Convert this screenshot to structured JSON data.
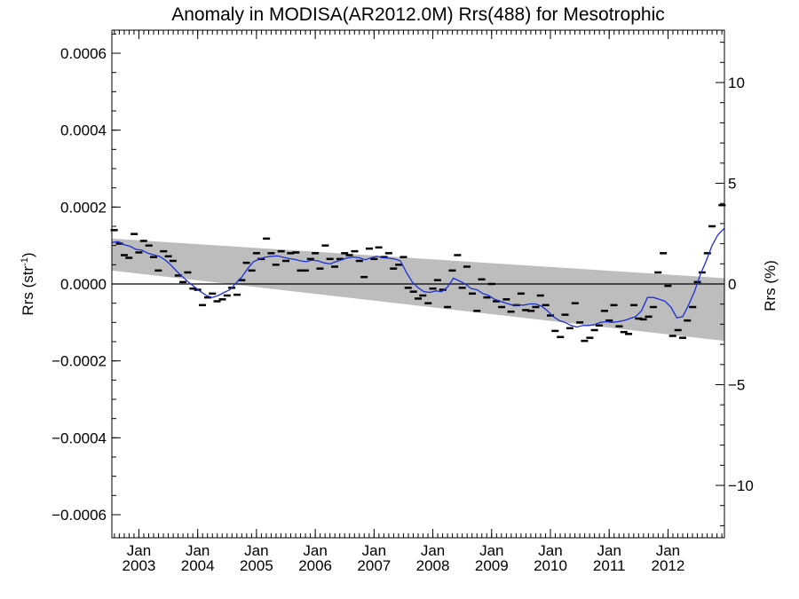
{
  "chart_data": {
    "type": "line",
    "title": "Anomaly in MODISA(AR2012.0M) Rrs(488) for Mesotrophic",
    "ylabel": "Rrs (str⁻¹)",
    "ylabel_base": "Rrs (str",
    "ylabel_sup": "-1",
    "ylabel_close": ")",
    "y2label": "Rrs (%)",
    "xlim": [
      2002.54,
      2012.96
    ],
    "ylim": [
      -0.00066,
      0.00066
    ],
    "y2lim": [
      -12.6,
      12.6
    ],
    "yticks": [
      -0.0006,
      -0.0004,
      -0.0002,
      0.0,
      0.0002,
      0.0004,
      0.0006
    ],
    "yticklabels": [
      "−0.0006",
      "−0.0004",
      "−0.0002",
      "0.0000",
      "0.0002",
      "0.0004",
      "0.0006"
    ],
    "y2ticks": [
      -10,
      -5,
      0,
      5,
      10
    ],
    "y2ticklabels": [
      "−10",
      "−5",
      "0",
      "5",
      "10"
    ],
    "xticks": [
      2003,
      2004,
      2005,
      2006,
      2007,
      2008,
      2009,
      2010,
      2011,
      2012
    ],
    "xticklabels_month": [
      "Jan",
      "Jan",
      "Jan",
      "Jan",
      "Jan",
      "Jan",
      "Jan",
      "Jan",
      "Jan",
      "Jan"
    ],
    "xticklabels_year": [
      "2003",
      "2004",
      "2005",
      "2006",
      "2007",
      "2008",
      "2009",
      "2010",
      "2011",
      "2012"
    ],
    "zero_line": 0,
    "band": {
      "upper": [
        [
          2002.54,
          0.000118
        ],
        [
          2012.96,
          1.5e-05
        ]
      ],
      "lower": [
        [
          2002.54,
          3.5e-05
        ],
        [
          2012.96,
          -0.000148
        ]
      ],
      "color": "#bdbdbd"
    },
    "series": [
      {
        "kind": "monthly-anomaly-markers",
        "color": "#000000",
        "points": [
          [
            2002.58,
            0.00014
          ],
          [
            2002.67,
            0.000105
          ],
          [
            2002.75,
            7.5e-05
          ],
          [
            2002.83,
            6.8e-05
          ],
          [
            2002.92,
            0.00013
          ],
          [
            2003.0,
            8.2e-05
          ],
          [
            2003.08,
            0.000112
          ],
          [
            2003.17,
            0.0001
          ],
          [
            2003.25,
            7e-05
          ],
          [
            2003.33,
            3.5e-05
          ],
          [
            2003.42,
            8.5e-05
          ],
          [
            2003.5,
            7.2e-05
          ],
          [
            2003.58,
            6e-05
          ],
          [
            2003.67,
            2.2e-05
          ],
          [
            2003.75,
            5e-06
          ],
          [
            2003.83,
            3e-05
          ],
          [
            2003.92,
            -1.2e-05
          ],
          [
            2004.0,
            -1.5e-05
          ],
          [
            2004.08,
            -5.5e-05
          ],
          [
            2004.17,
            -3.5e-05
          ],
          [
            2004.25,
            -2.5e-05
          ],
          [
            2004.33,
            -4.5e-05
          ],
          [
            2004.42,
            -4e-05
          ],
          [
            2004.5,
            -3e-05
          ],
          [
            2004.58,
            -1e-05
          ],
          [
            2004.67,
            -2.8e-05
          ],
          [
            2004.75,
            1e-05
          ],
          [
            2004.83,
            5.5e-05
          ],
          [
            2004.92,
            3.5e-05
          ],
          [
            2005.0,
            8e-05
          ],
          [
            2005.08,
            6.5e-05
          ],
          [
            2005.17,
            0.000118
          ],
          [
            2005.25,
            8e-05
          ],
          [
            2005.33,
            5e-05
          ],
          [
            2005.42,
            8.5e-05
          ],
          [
            2005.5,
            6e-05
          ],
          [
            2005.58,
            8e-05
          ],
          [
            2005.67,
            8.2e-05
          ],
          [
            2005.75,
            3.5e-05
          ],
          [
            2005.83,
            3.5e-05
          ],
          [
            2005.92,
            6.5e-05
          ],
          [
            2006.0,
            8e-05
          ],
          [
            2006.08,
            4e-05
          ],
          [
            2006.17,
            0.0001
          ],
          [
            2006.25,
            6.5e-05
          ],
          [
            2006.33,
            4.5e-05
          ],
          [
            2006.42,
            6.5e-05
          ],
          [
            2006.5,
            8e-05
          ],
          [
            2006.58,
            7.5e-05
          ],
          [
            2006.67,
            8.5e-05
          ],
          [
            2006.75,
            6e-05
          ],
          [
            2006.83,
            1.8e-05
          ],
          [
            2006.92,
            9.2e-05
          ],
          [
            2007.0,
            6.5e-05
          ],
          [
            2007.08,
            9.5e-05
          ],
          [
            2007.17,
            7e-05
          ],
          [
            2007.25,
            8e-05
          ],
          [
            2007.33,
            4e-05
          ],
          [
            2007.42,
            5e-05
          ],
          [
            2007.5,
            7e-05
          ],
          [
            2007.58,
            -1e-05
          ],
          [
            2007.67,
            -2e-05
          ],
          [
            2007.75,
            -3.8e-05
          ],
          [
            2007.83,
            -3e-05
          ],
          [
            2007.92,
            -5e-05
          ],
          [
            2008.0,
            -1.2e-05
          ],
          [
            2008.08,
            1e-05
          ],
          [
            2008.17,
            -1.5e-05
          ],
          [
            2008.25,
            -6e-05
          ],
          [
            2008.33,
            3.5e-05
          ],
          [
            2008.42,
            7.5e-05
          ],
          [
            2008.5,
            -1e-05
          ],
          [
            2008.58,
            4.5e-05
          ],
          [
            2008.67,
            -2.5e-05
          ],
          [
            2008.75,
            -7e-05
          ],
          [
            2008.83,
            1.2e-05
          ],
          [
            2008.92,
            -3.5e-05
          ],
          [
            2009.0,
            0.0
          ],
          [
            2009.08,
            -4.5e-05
          ],
          [
            2009.17,
            -6e-05
          ],
          [
            2009.25,
            -4e-05
          ],
          [
            2009.33,
            -7.2e-05
          ],
          [
            2009.42,
            -5.5e-05
          ],
          [
            2009.5,
            -2.5e-05
          ],
          [
            2009.58,
            -6.8e-05
          ],
          [
            2009.67,
            -7e-05
          ],
          [
            2009.75,
            -6e-05
          ],
          [
            2009.83,
            -3e-05
          ],
          [
            2009.92,
            -5.5e-05
          ],
          [
            2010.0,
            -8.2e-05
          ],
          [
            2010.08,
            -0.000122
          ],
          [
            2010.17,
            -0.000138
          ],
          [
            2010.25,
            -8e-05
          ],
          [
            2010.33,
            -0.000115
          ],
          [
            2010.42,
            -5e-05
          ],
          [
            2010.5,
            -0.0001
          ],
          [
            2010.58,
            -0.000148
          ],
          [
            2010.67,
            -0.00014
          ],
          [
            2010.75,
            -0.00012
          ],
          [
            2010.83,
            -0.000108
          ],
          [
            2010.92,
            -7e-05
          ],
          [
            2011.0,
            -9.5e-05
          ],
          [
            2011.08,
            -5.5e-05
          ],
          [
            2011.17,
            -0.00011
          ],
          [
            2011.25,
            -0.000125
          ],
          [
            2011.33,
            -0.00013
          ],
          [
            2011.42,
            -5.5e-05
          ],
          [
            2011.5,
            -9e-05
          ],
          [
            2011.58,
            -9.2e-05
          ],
          [
            2011.67,
            -8.5e-05
          ],
          [
            2011.75,
            -6e-05
          ],
          [
            2011.83,
            3e-05
          ],
          [
            2011.92,
            8e-05
          ],
          [
            2012.0,
            -5e-06
          ],
          [
            2012.08,
            -0.000135
          ],
          [
            2012.17,
            -0.00012
          ],
          [
            2012.25,
            -0.00014
          ],
          [
            2012.33,
            -9.5e-05
          ],
          [
            2012.42,
            -6e-05
          ],
          [
            2012.5,
            5e-06
          ],
          [
            2012.58,
            3e-05
          ],
          [
            2012.67,
            8e-05
          ],
          [
            2012.75,
            0.00015
          ],
          [
            2012.92,
            0.000205
          ]
        ]
      },
      {
        "kind": "running-mean",
        "color": "#1d2fd6",
        "points": [
          [
            2002.54,
            0.000108
          ],
          [
            2002.65,
            0.00011
          ],
          [
            2002.75,
            0.000102
          ],
          [
            2002.85,
            9.8e-05
          ],
          [
            2002.95,
            9e-05
          ],
          [
            2003.05,
            8.8e-05
          ],
          [
            2003.15,
            8e-05
          ],
          [
            2003.25,
            7.6e-05
          ],
          [
            2003.35,
            7.2e-05
          ],
          [
            2003.45,
            6.2e-05
          ],
          [
            2003.55,
            4.8e-05
          ],
          [
            2003.65,
            3.2e-05
          ],
          [
            2003.75,
            1.8e-05
          ],
          [
            2003.85,
            4e-06
          ],
          [
            2003.95,
            -8e-06
          ],
          [
            2004.05,
            -2e-05
          ],
          [
            2004.15,
            -3e-05
          ],
          [
            2004.25,
            -3.5e-05
          ],
          [
            2004.35,
            -3e-05
          ],
          [
            2004.45,
            -2.2e-05
          ],
          [
            2004.55,
            -1.5e-05
          ],
          [
            2004.65,
            2e-06
          ],
          [
            2004.75,
            1.8e-05
          ],
          [
            2004.85,
            4e-05
          ],
          [
            2004.95,
            5.8e-05
          ],
          [
            2005.05,
            6.5e-05
          ],
          [
            2005.15,
            7e-05
          ],
          [
            2005.25,
            7.2e-05
          ],
          [
            2005.35,
            7.3e-05
          ],
          [
            2005.45,
            7e-05
          ],
          [
            2005.55,
            6.6e-05
          ],
          [
            2005.65,
            6.4e-05
          ],
          [
            2005.75,
            6e-05
          ],
          [
            2005.85,
            5.8e-05
          ],
          [
            2005.95,
            6.2e-05
          ],
          [
            2006.05,
            6e-05
          ],
          [
            2006.15,
            5.5e-05
          ],
          [
            2006.25,
            5.2e-05
          ],
          [
            2006.35,
            5.8e-05
          ],
          [
            2006.45,
            6.3e-05
          ],
          [
            2006.55,
            6.8e-05
          ],
          [
            2006.65,
            7e-05
          ],
          [
            2006.75,
            6.8e-05
          ],
          [
            2006.85,
            6.3e-05
          ],
          [
            2006.95,
            6.8e-05
          ],
          [
            2007.05,
            7.2e-05
          ],
          [
            2007.15,
            6.8e-05
          ],
          [
            2007.25,
            6.7e-05
          ],
          [
            2007.35,
            6.5e-05
          ],
          [
            2007.45,
            6e-05
          ],
          [
            2007.55,
            3e-05
          ],
          [
            2007.65,
            5e-06
          ],
          [
            2007.75,
            -1e-05
          ],
          [
            2007.85,
            -2e-05
          ],
          [
            2007.95,
            -2.2e-05
          ],
          [
            2008.05,
            -1.8e-05
          ],
          [
            2008.15,
            -2e-05
          ],
          [
            2008.25,
            -8e-06
          ],
          [
            2008.35,
            1.5e-05
          ],
          [
            2008.45,
            8e-06
          ],
          [
            2008.55,
            0.0
          ],
          [
            2008.65,
            -1.2e-05
          ],
          [
            2008.75,
            -1.5e-05
          ],
          [
            2008.85,
            -2.5e-05
          ],
          [
            2008.95,
            -3e-05
          ],
          [
            2009.05,
            -4e-05
          ],
          [
            2009.15,
            -4.5e-05
          ],
          [
            2009.25,
            -5e-05
          ],
          [
            2009.35,
            -5.5e-05
          ],
          [
            2009.45,
            -5.5e-05
          ],
          [
            2009.55,
            -5.5e-05
          ],
          [
            2009.65,
            -5.2e-05
          ],
          [
            2009.75,
            -5.2e-05
          ],
          [
            2009.85,
            -5.8e-05
          ],
          [
            2009.95,
            -7e-05
          ],
          [
            2010.05,
            -8.5e-05
          ],
          [
            2010.15,
            -9.5e-05
          ],
          [
            2010.25,
            -0.0001
          ],
          [
            2010.35,
            -0.000108
          ],
          [
            2010.45,
            -0.000112
          ],
          [
            2010.55,
            -0.000108
          ],
          [
            2010.65,
            -0.000108
          ],
          [
            2010.75,
            -0.000106
          ],
          [
            2010.85,
            -0.0001
          ],
          [
            2010.95,
            -9.8e-05
          ],
          [
            2011.05,
            -0.0001
          ],
          [
            2011.15,
            -9.8e-05
          ],
          [
            2011.25,
            -9.5e-05
          ],
          [
            2011.35,
            -9e-05
          ],
          [
            2011.45,
            -8.5e-05
          ],
          [
            2011.55,
            -7e-05
          ],
          [
            2011.65,
            -3.5e-05
          ],
          [
            2011.75,
            -3.5e-05
          ],
          [
            2011.85,
            -4e-05
          ],
          [
            2011.95,
            -4.5e-05
          ],
          [
            2012.05,
            -6e-05
          ],
          [
            2012.15,
            -8.8e-05
          ],
          [
            2012.25,
            -8.5e-05
          ],
          [
            2012.35,
            -5.5e-05
          ],
          [
            2012.45,
            -2e-05
          ],
          [
            2012.55,
            2.5e-05
          ],
          [
            2012.65,
            6e-05
          ],
          [
            2012.75,
            0.0001
          ],
          [
            2012.85,
            0.000128
          ],
          [
            2012.96,
            0.000145
          ]
        ]
      }
    ]
  }
}
